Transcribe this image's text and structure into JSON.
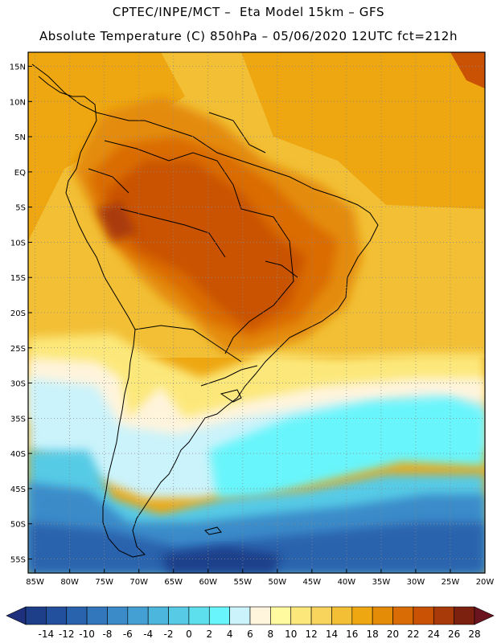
{
  "header": {
    "line1": "CPTEC/INPE/MCT –  Eta Model 15km – GFS",
    "line2": "Absolute Temperature (C) 850hPa – 05/06/2020 12UTC fct=212h"
  },
  "axes": {
    "lat_labels": [
      "15N",
      "10N",
      "5N",
      "EQ",
      "5S",
      "10S",
      "15S",
      "20S",
      "25S",
      "30S",
      "35S",
      "40S",
      "45S",
      "50S",
      "55S"
    ],
    "lat_values": [
      15,
      10,
      5,
      0,
      -5,
      -10,
      -15,
      -20,
      -25,
      -30,
      -35,
      -40,
      -45,
      -50,
      -55
    ],
    "lon_labels": [
      "85W",
      "80W",
      "75W",
      "70W",
      "65W",
      "60W",
      "55W",
      "50W",
      "45W",
      "40W",
      "35W",
      "30W",
      "25W",
      "20W"
    ],
    "lon_values": [
      -85,
      -80,
      -75,
      -70,
      -65,
      -60,
      -55,
      -50,
      -45,
      -40,
      -35,
      -30,
      -25,
      -20
    ],
    "lat_range": [
      -57,
      17
    ],
    "lon_range": [
      -86,
      -20
    ]
  },
  "colorbar": {
    "ticks": [
      "-14",
      "-12",
      "-10",
      "-8",
      "-6",
      "-4",
      "-2",
      "0",
      "2",
      "4",
      "6",
      "8",
      "10",
      "12",
      "14",
      "16",
      "18",
      "20",
      "22",
      "24",
      "26",
      "28"
    ],
    "colors": [
      "#1d3f8a",
      "#22509d",
      "#2a63ad",
      "#3277bc",
      "#3b8bc9",
      "#44a0d3",
      "#4db6dd",
      "#57cbe6",
      "#5ddfee",
      "#68f5fb",
      "#cbf3fb",
      "#fff4dc",
      "#fffaa0",
      "#fce87a",
      "#f8d45c",
      "#f2bf35",
      "#eea711",
      "#e48b08",
      "#da6c06",
      "#c95205",
      "#a83a0a",
      "#7c2010"
    ],
    "under_color": "#1e2f7e",
    "over_color": "#6a1420"
  },
  "legend": {
    "units": "C",
    "variable": "Absolute Temperature"
  }
}
